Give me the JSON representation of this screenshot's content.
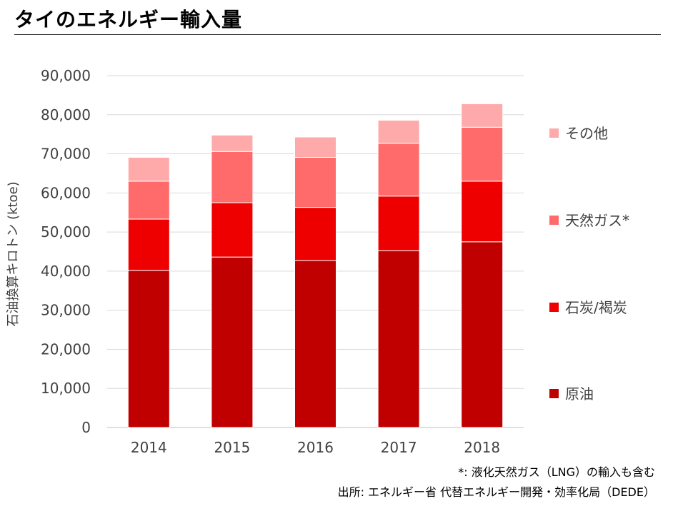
{
  "title": "タイのエネルギー輸入量",
  "chart_data": {
    "type": "bar",
    "stacked": true,
    "title": "タイのエネルギー輸入量",
    "xlabel": "",
    "ylabel": "石油換算キロトン (ktoe)",
    "ylim": [
      0,
      90000
    ],
    "yticks": [
      0,
      10000,
      20000,
      30000,
      40000,
      50000,
      60000,
      70000,
      80000,
      90000
    ],
    "ytick_labels": [
      "0",
      "10,000",
      "20,000",
      "30,000",
      "40,000",
      "50,000",
      "60,000",
      "70,000",
      "80,000",
      "90,000"
    ],
    "categories": [
      "2014",
      "2015",
      "2016",
      "2017",
      "2018"
    ],
    "series": [
      {
        "name": "原油",
        "color": "#c00000",
        "values": [
          40200,
          43600,
          42700,
          45200,
          47500
        ]
      },
      {
        "name": "石炭/褐炭",
        "color": "#ee0000",
        "values": [
          13100,
          13900,
          13600,
          14000,
          15500
        ]
      },
      {
        "name": "天然ガス*",
        "color": "#ff6b6b",
        "values": [
          9700,
          13100,
          12800,
          13500,
          13800
        ]
      },
      {
        "name": "その他",
        "color": "#ffaaaa",
        "values": [
          6100,
          4200,
          5200,
          5900,
          6000
        ]
      }
    ],
    "grid": true,
    "legend_position": "right"
  },
  "footnotes": {
    "note": "*: 液化天然ガス（LNG）の輸入も含む",
    "source": "出所: エネルギー省 代替エネルギー開発・効率化局（DEDE）"
  }
}
